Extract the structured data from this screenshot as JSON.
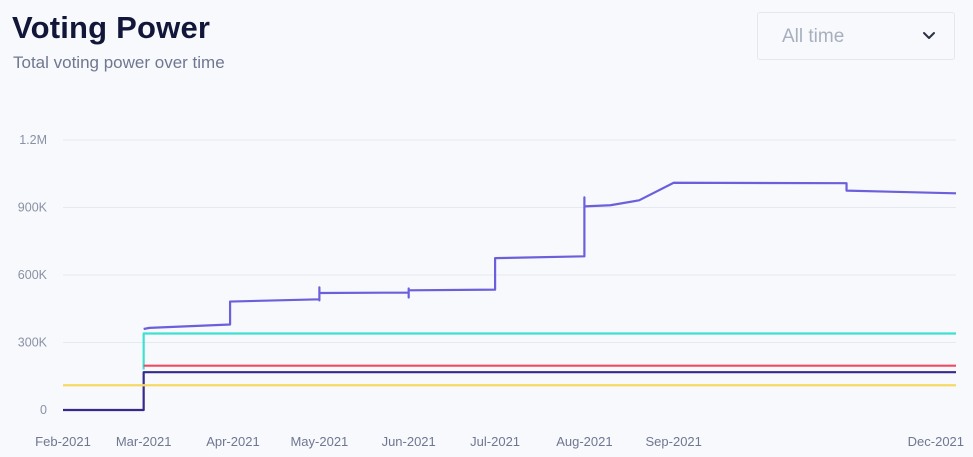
{
  "header": {
    "title": "Voting Power",
    "subtitle": "Total voting power over time"
  },
  "range_select": {
    "value": "All time",
    "icon": "chevron-down-icon"
  },
  "chart_data": {
    "type": "line",
    "title": "Voting Power",
    "subtitle": "Total voting power over time",
    "xlabel": "",
    "ylabel": "",
    "ylim": [
      0,
      1200000
    ],
    "y_ticks": [
      {
        "value": 0,
        "label": "0"
      },
      {
        "value": 300000,
        "label": "300K"
      },
      {
        "value": 600000,
        "label": "600K"
      },
      {
        "value": 900000,
        "label": "900K"
      },
      {
        "value": 1200000,
        "label": "1.2M"
      }
    ],
    "x_ticks": [
      {
        "date": "2021-02-01",
        "label": "Feb-2021"
      },
      {
        "date": "2021-03-01",
        "label": "Mar-2021"
      },
      {
        "date": "2021-04-01",
        "label": "Apr-2021"
      },
      {
        "date": "2021-05-01",
        "label": "May-2021"
      },
      {
        "date": "2021-06-01",
        "label": "Jun-2021"
      },
      {
        "date": "2021-07-01",
        "label": "Jul-2021"
      },
      {
        "date": "2021-08-01",
        "label": "Aug-2021"
      },
      {
        "date": "2021-09-01",
        "label": "Sep-2021"
      },
      {
        "date": "2021-12-01",
        "label": "Dec-2021"
      }
    ],
    "xlim": [
      "2021-02-01",
      "2021-12-08"
    ],
    "grid": true,
    "legend": "none",
    "series": [
      {
        "color": "#6c5fdb",
        "points": [
          [
            "2021-03-01",
            360000
          ],
          [
            "2021-03-03",
            365000
          ],
          [
            "2021-03-31",
            380000
          ],
          [
            "2021-03-31",
            482000
          ],
          [
            "2021-05-01",
            492000
          ],
          [
            "2021-05-01",
            545000
          ],
          [
            "2021-05-01",
            487000
          ],
          [
            "2021-05-01",
            520000
          ],
          [
            "2021-06-01",
            522000
          ],
          [
            "2021-06-01",
            500000
          ],
          [
            "2021-06-01",
            540000
          ],
          [
            "2021-06-01",
            532000
          ],
          [
            "2021-07-01",
            535000
          ],
          [
            "2021-07-01",
            675000
          ],
          [
            "2021-08-01",
            683000
          ],
          [
            "2021-08-01",
            945000
          ],
          [
            "2021-08-01",
            905000
          ],
          [
            "2021-08-10",
            910000
          ],
          [
            "2021-08-20",
            932000
          ],
          [
            "2021-09-01",
            1010000
          ],
          [
            "2021-10-31",
            1008000
          ],
          [
            "2021-10-31",
            975000
          ],
          [
            "2021-12-08",
            963000
          ]
        ]
      },
      {
        "color": "#3ee0d0",
        "points": [
          [
            "2021-03-01",
            180000
          ],
          [
            "2021-03-01",
            340000
          ],
          [
            "2021-12-08",
            340000
          ]
        ]
      },
      {
        "color": "#ef4a63",
        "points": [
          [
            "2021-03-01",
            197000
          ],
          [
            "2021-12-08",
            197000
          ]
        ]
      },
      {
        "color": "#352a8c",
        "points": [
          [
            "2021-02-01",
            0
          ],
          [
            "2021-03-01",
            0
          ],
          [
            "2021-03-01",
            168000
          ],
          [
            "2021-12-08",
            168000
          ]
        ]
      },
      {
        "color": "#f6d964",
        "points": [
          [
            "2021-02-01",
            110000
          ],
          [
            "2021-12-08",
            110000
          ]
        ]
      }
    ]
  }
}
